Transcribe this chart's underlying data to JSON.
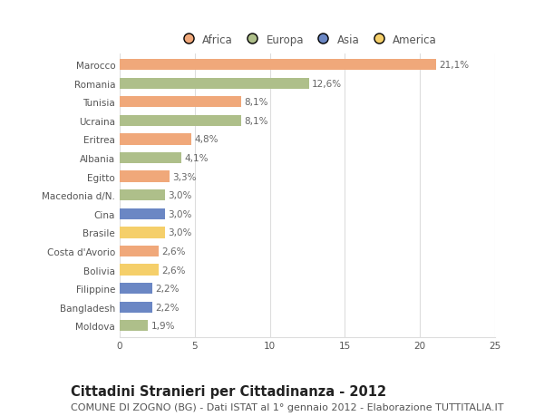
{
  "categories": [
    "Marocco",
    "Romania",
    "Tunisia",
    "Ucraina",
    "Eritrea",
    "Albania",
    "Egitto",
    "Macedonia d/N.",
    "Cina",
    "Brasile",
    "Costa d'Avorio",
    "Bolivia",
    "Filippine",
    "Bangladesh",
    "Moldova"
  ],
  "values": [
    21.1,
    12.6,
    8.1,
    8.1,
    4.8,
    4.1,
    3.3,
    3.0,
    3.0,
    3.0,
    2.6,
    2.6,
    2.2,
    2.2,
    1.9
  ],
  "labels": [
    "21,1%",
    "12,6%",
    "8,1%",
    "8,1%",
    "4,8%",
    "4,1%",
    "3,3%",
    "3,0%",
    "3,0%",
    "3,0%",
    "2,6%",
    "2,6%",
    "2,2%",
    "2,2%",
    "1,9%"
  ],
  "continents": [
    "Africa",
    "Europa",
    "Africa",
    "Europa",
    "Africa",
    "Europa",
    "Africa",
    "Europa",
    "Asia",
    "America",
    "Africa",
    "America",
    "Asia",
    "Asia",
    "Europa"
  ],
  "continent_colors": {
    "Africa": "#F0A87A",
    "Europa": "#AEBF8A",
    "Asia": "#6B87C4",
    "America": "#F5CF6A"
  },
  "legend_order": [
    "Africa",
    "Europa",
    "Asia",
    "America"
  ],
  "title": "Cittadini Stranieri per Cittadinanza - 2012",
  "subtitle": "COMUNE DI ZOGNO (BG) - Dati ISTAT al 1° gennaio 2012 - Elaborazione TUTTITALIA.IT",
  "xlim": [
    0,
    25
  ],
  "xticks": [
    0,
    5,
    10,
    15,
    20,
    25
  ],
  "background_color": "#ffffff",
  "grid_color": "#dddddd",
  "bar_height": 0.6,
  "title_fontsize": 10.5,
  "subtitle_fontsize": 8,
  "label_fontsize": 7.5,
  "tick_fontsize": 7.5,
  "legend_fontsize": 8.5
}
